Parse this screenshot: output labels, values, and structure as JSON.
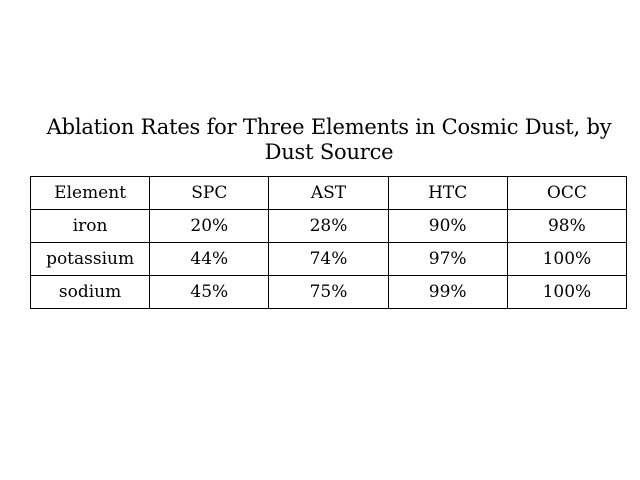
{
  "chart_data": {
    "type": "table",
    "title": "Ablation Rates for Three Elements in Cosmic Dust, by Dust Source",
    "columns": [
      "Element",
      "SPC",
      "AST",
      "HTC",
      "OCC"
    ],
    "rows": [
      [
        "iron",
        "20%",
        "28%",
        "90%",
        "98%"
      ],
      [
        "potassium",
        "44%",
        "74%",
        "97%",
        "100%"
      ],
      [
        "sodium",
        "45%",
        "75%",
        "99%",
        "100%"
      ]
    ]
  }
}
